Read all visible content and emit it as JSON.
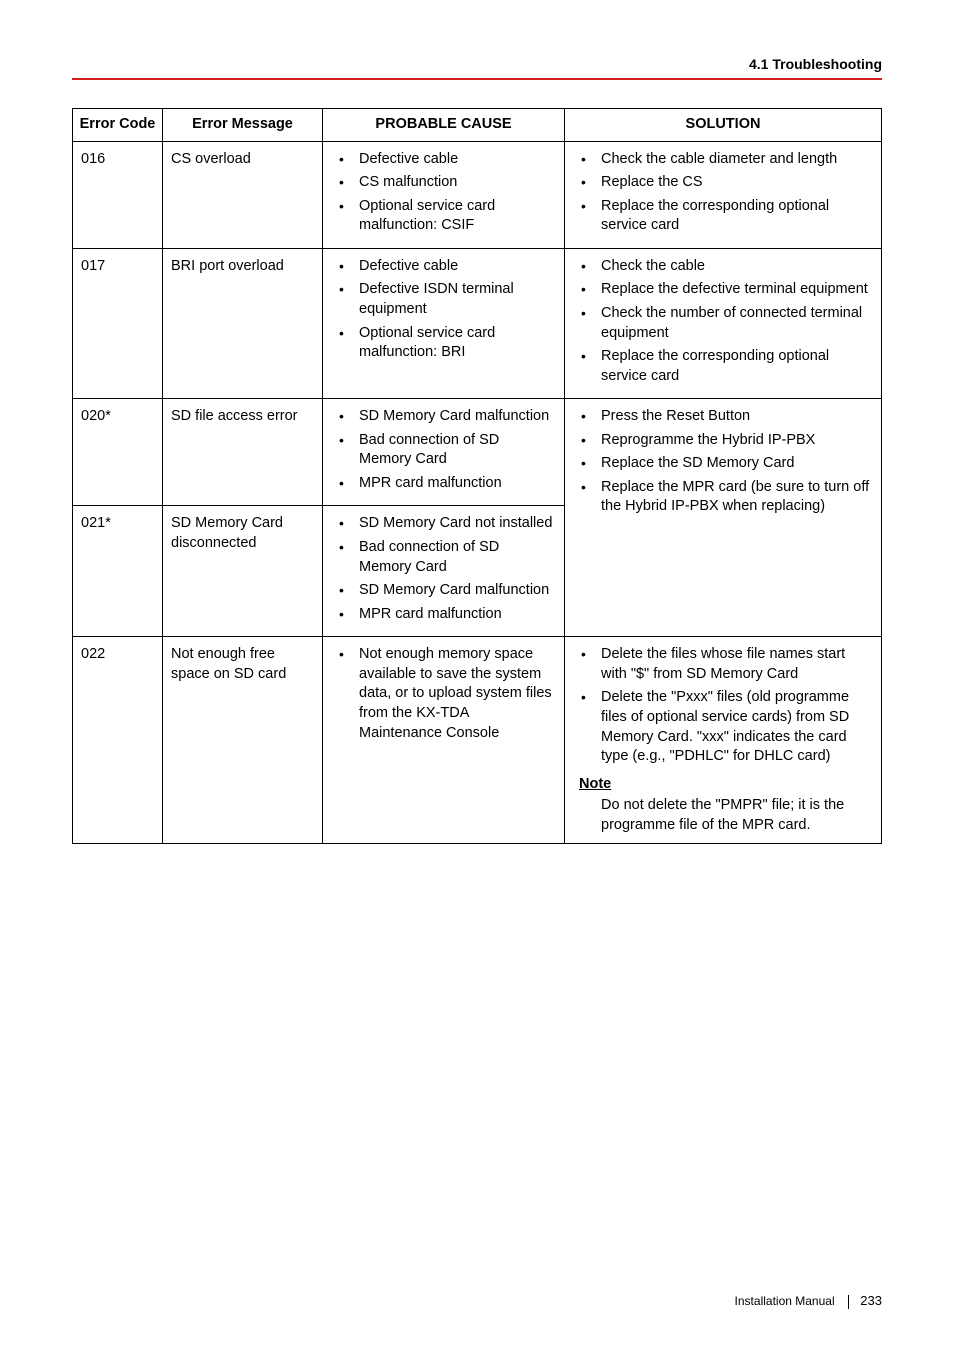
{
  "header": {
    "section": "4.1 Troubleshooting"
  },
  "footer": {
    "doc_title": "Installation Manual",
    "page_no": "233"
  },
  "table": {
    "headers": [
      "Error Code",
      "Error Message",
      "PROBABLE CAUSE",
      "SOLUTION"
    ],
    "rows": [
      {
        "code": "016",
        "msg": "CS overload",
        "cause": [
          "Defective cable",
          "CS malfunction",
          "Optional service card malfunction: CSIF"
        ],
        "solution": {
          "bullets": [
            "Check the cable diameter and length",
            "Replace the CS",
            "Replace the corresponding optional service card"
          ]
        }
      },
      {
        "code": "017",
        "msg": "BRI port overload",
        "cause": [
          "Defective cable",
          "Defective ISDN terminal equipment",
          "Optional service card malfunction: BRI"
        ],
        "solution": {
          "bullets": [
            "Check the cable",
            "Replace the defective terminal equipment",
            "Check the number of connected terminal equipment",
            "Replace the corresponding optional service card"
          ]
        }
      },
      {
        "code": "020*",
        "msg": "SD file access error",
        "cause": [
          "SD Memory Card malfunction",
          "Bad connection of SD Memory Card",
          "MPR card malfunction"
        ],
        "solution_span": {
          "bullets": [
            "Press the Reset Button",
            "Reprogramme the Hybrid IP-PBX",
            "Replace the SD Memory Card",
            "Replace the MPR card (be sure to turn off the Hybrid IP-PBX when replacing)"
          ]
        }
      },
      {
        "code": "021*",
        "msg": "SD Memory Card disconnected",
        "cause": [
          "SD Memory Card not installed",
          "Bad connection of SD Memory Card",
          "SD Memory Card malfunction",
          "MPR card malfunction"
        ]
      },
      {
        "code": "022",
        "msg": "Not enough free space on SD card",
        "cause": [
          "Not enough memory space available to save the system data, or to upload system files from the KX-TDA Maintenance Console"
        ],
        "solution": {
          "bullets": [
            "Delete the files whose file names start with \"$\" from SD Memory Card",
            "Delete the \"Pxxx\" files (old programme files of optional service cards) from SD Memory Card. \"xxx\" indicates the card type (e.g., \"PDHLC\" for DHLC card)"
          ],
          "note_head": "Note",
          "note_body": "Do not delete the \"PMPR\" file; it is the programme file of the MPR card."
        }
      }
    ]
  }
}
